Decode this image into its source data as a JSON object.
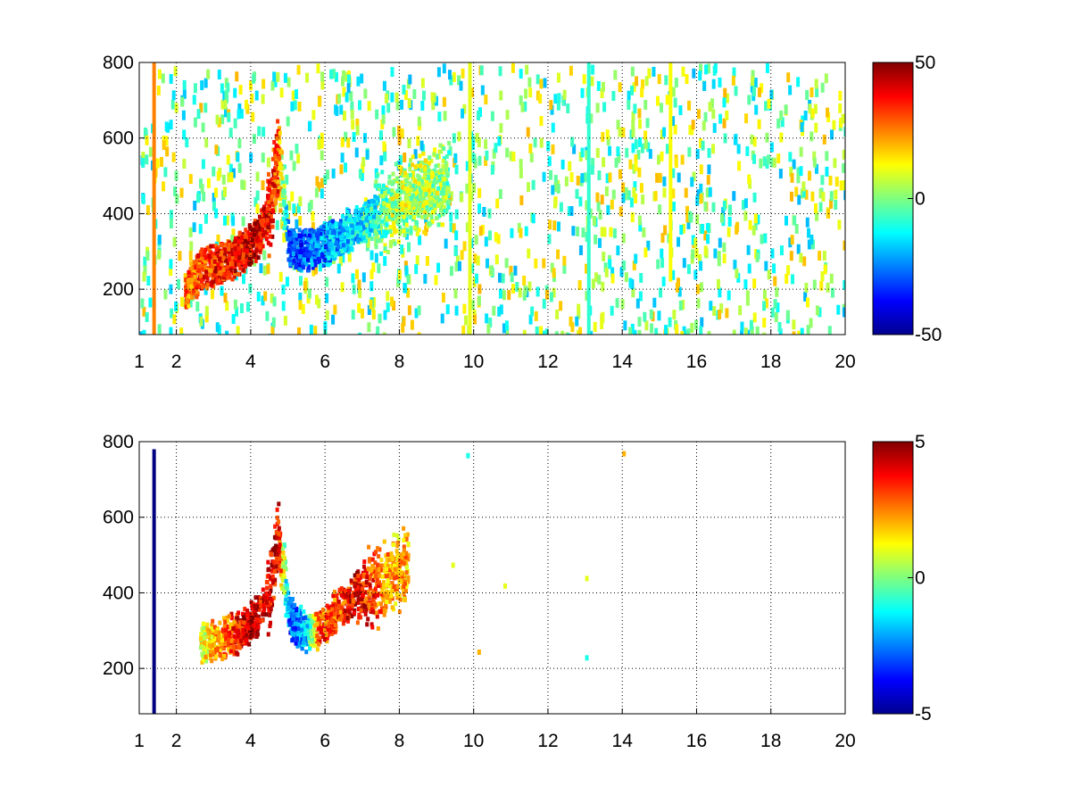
{
  "chart_data": [
    {
      "type": "heatmap",
      "title": "",
      "xlabel": "",
      "ylabel": "",
      "xlim": [
        1,
        20
      ],
      "ylim": [
        80,
        800
      ],
      "xticks": [
        1,
        2,
        4,
        6,
        8,
        10,
        12,
        14,
        16,
        18,
        20
      ],
      "yticks": [
        200,
        400,
        600,
        800
      ],
      "grid": true,
      "grid_style": "dotted",
      "colormap": "jet",
      "colorbar": {
        "range": [
          -50,
          50
        ],
        "ticks": [
          -50,
          0,
          50
        ]
      },
      "features": {
        "ridge": {
          "x": [
            2.2,
            2.6,
            3.0,
            3.4,
            3.8,
            4.2,
            4.5,
            4.7,
            5.0,
            5.4,
            5.8,
            6.3,
            6.8,
            7.3,
            7.8,
            8.3,
            8.8,
            9.3
          ],
          "y": [
            200,
            255,
            270,
            285,
            310,
            350,
            420,
            560,
            320,
            310,
            320,
            340,
            370,
            400,
            430,
            450,
            470,
            490
          ],
          "value": [
            25,
            30,
            35,
            35,
            40,
            40,
            35,
            30,
            -30,
            -30,
            -25,
            -20,
            -15,
            -10,
            5,
            5,
            5,
            0
          ]
        },
        "vertical_stripes": [
          {
            "x": 1.4,
            "y": [
              80,
              800
            ],
            "value": 25
          },
          {
            "x": 9.9,
            "y": [
              80,
              800
            ],
            "value": 10
          },
          {
            "x": 13.1,
            "y": [
              80,
              800
            ],
            "value": -8
          },
          {
            "x": 15.3,
            "y": [
              220,
              800
            ],
            "value": 12
          }
        ],
        "background_noise": {
          "x": [
            1,
            20
          ],
          "y": [
            80,
            800
          ],
          "value_range": [
            -20,
            20
          ],
          "density": "sparse"
        }
      }
    },
    {
      "type": "heatmap",
      "title": "",
      "xlabel": "",
      "ylabel": "",
      "xlim": [
        1,
        20
      ],
      "ylim": [
        80,
        800
      ],
      "xticks": [
        1,
        2,
        4,
        6,
        8,
        10,
        12,
        14,
        16,
        18,
        20
      ],
      "yticks": [
        200,
        400,
        600,
        800
      ],
      "grid": true,
      "grid_style": "dotted",
      "colormap": "jet",
      "colorbar": {
        "range": [
          -5,
          5
        ],
        "ticks": [
          -5,
          0,
          5
        ]
      },
      "features": {
        "ridge": {
          "x": [
            2.6,
            3.0,
            3.4,
            3.8,
            4.2,
            4.5,
            4.7,
            5.0,
            5.4,
            5.8,
            6.3,
            6.8,
            7.3,
            7.8,
            8.2
          ],
          "y": [
            270,
            280,
            290,
            310,
            350,
            420,
            560,
            340,
            300,
            310,
            360,
            400,
            420,
            460,
            470
          ],
          "value": [
            1,
            2,
            3,
            4,
            4,
            4,
            4,
            -3,
            -2,
            3,
            3,
            4,
            3,
            2,
            2
          ]
        },
        "vertical_stripes": [
          {
            "x": 1.4,
            "y": [
              80,
              780
            ],
            "value": -5
          }
        ],
        "isolated_points": [
          {
            "x": 9.8,
            "y": 770,
            "value": -1
          },
          {
            "x": 9.4,
            "y": 480,
            "value": 1
          },
          {
            "x": 10.8,
            "y": 425,
            "value": 1
          },
          {
            "x": 13.0,
            "y": 445,
            "value": 1
          },
          {
            "x": 14.0,
            "y": 775,
            "value": 2
          },
          {
            "x": 10.1,
            "y": 250,
            "value": 2
          },
          {
            "x": 13.0,
            "y": 235,
            "value": -1
          }
        ]
      }
    }
  ]
}
